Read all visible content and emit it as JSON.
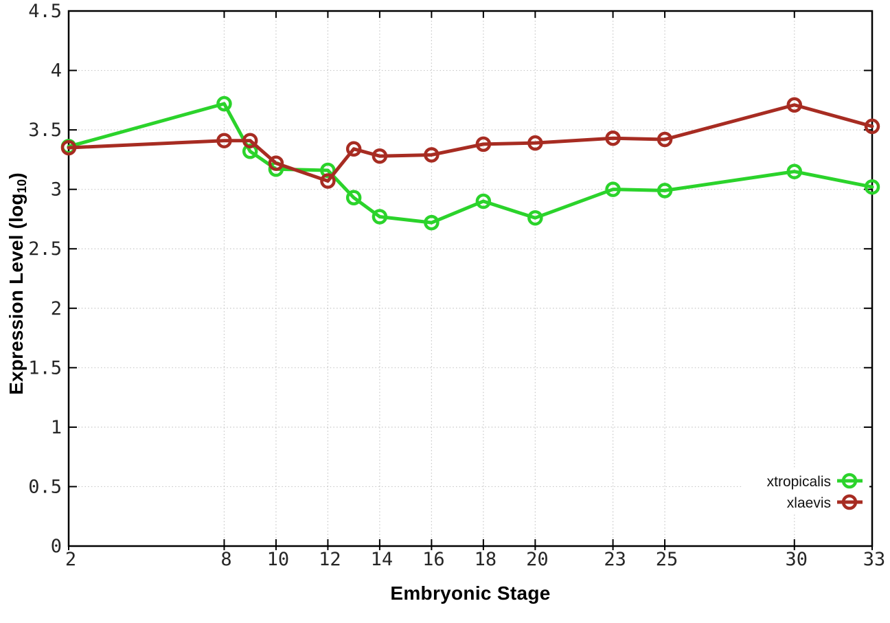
{
  "chart_data": {
    "type": "line",
    "title": "",
    "xlabel": "Embryonic Stage",
    "ylabel": "Expression Level (log10)",
    "ylabel_parts": {
      "main": "Expression Level (log",
      "sub": "10",
      "close": ")"
    },
    "xlim": [
      2,
      33
    ],
    "ylim": [
      0,
      4.5
    ],
    "grid": true,
    "x": [
      2,
      8,
      9,
      10,
      12,
      13,
      14,
      16,
      18,
      20,
      23,
      25,
      30,
      33
    ],
    "x_ticks": [
      2,
      8,
      10,
      12,
      14,
      16,
      18,
      20,
      23,
      25,
      30,
      33
    ],
    "x_tick_labels": [
      "2",
      "8",
      "10",
      "12",
      "14",
      "16",
      "18",
      "20",
      "23",
      "25",
      "30",
      "33"
    ],
    "y_ticks": [
      0,
      0.5,
      1,
      1.5,
      2,
      2.5,
      3,
      3.5,
      4,
      4.5
    ],
    "y_tick_labels": [
      "0",
      "0.5",
      "1",
      "1.5",
      "2",
      "2.5",
      "3",
      "3.5",
      "4",
      "4.5"
    ],
    "series": [
      {
        "name": "xtropicalis",
        "color": "#2bd32b",
        "marker": "open-circle",
        "values": [
          3.36,
          3.72,
          3.32,
          3.17,
          3.16,
          2.93,
          2.77,
          2.72,
          2.9,
          2.76,
          3.0,
          2.99,
          3.15,
          3.02
        ]
      },
      {
        "name": "xlaevis",
        "color": "#a72c22",
        "marker": "open-circle",
        "values": [
          3.35,
          3.41,
          3.41,
          3.22,
          3.07,
          3.34,
          3.28,
          3.29,
          3.38,
          3.39,
          3.43,
          3.42,
          3.71,
          3.53
        ]
      }
    ],
    "legend": {
      "position": "bottom-right",
      "items": [
        "xtropicalis",
        "xlaevis"
      ]
    },
    "colors": {
      "grid": "#c6c6c6",
      "axis": "#000000",
      "tick_text": "#262626",
      "legend_text": "#111111",
      "background": "#ffffff"
    }
  }
}
